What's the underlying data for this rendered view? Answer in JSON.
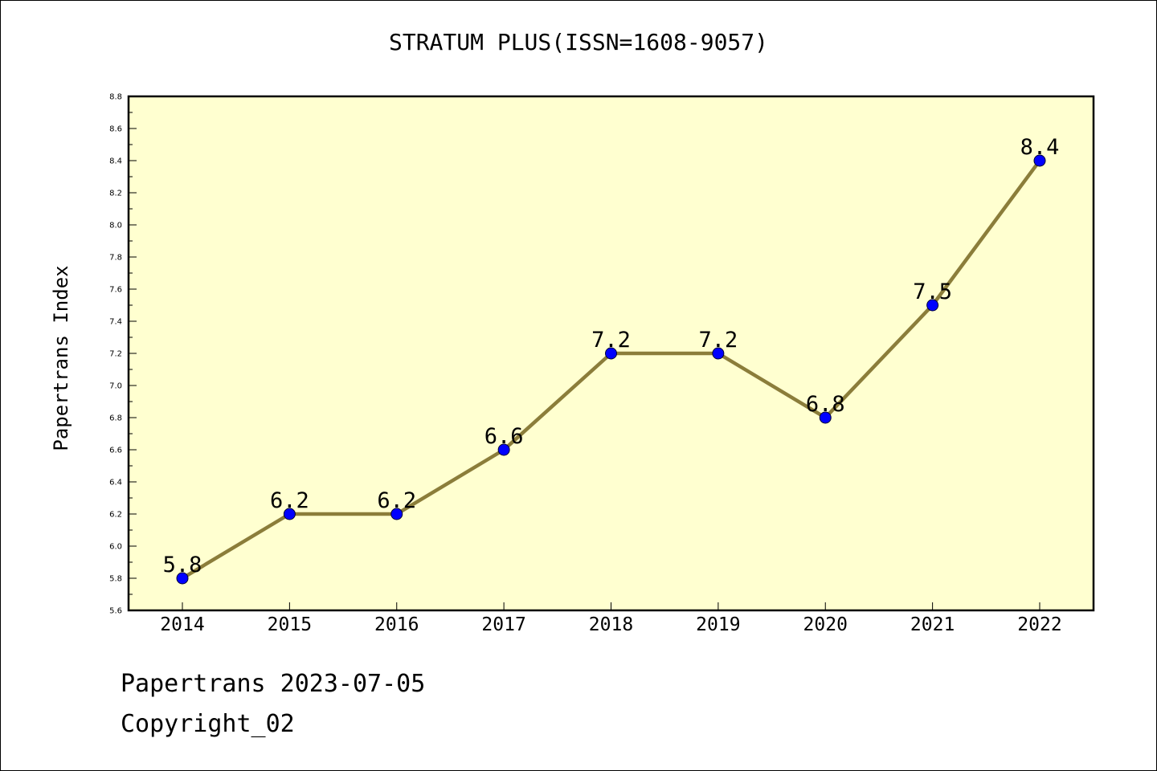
{
  "chart_data": {
    "type": "line",
    "title": "STRATUM PLUS(ISSN=1608-9057)",
    "xlabel": "",
    "ylabel": "Papertrans Index",
    "categories": [
      "2014",
      "2015",
      "2016",
      "2017",
      "2018",
      "2019",
      "2020",
      "2021",
      "2022"
    ],
    "series": [
      {
        "values": [
          5.8,
          6.2,
          6.2,
          6.6,
          7.2,
          7.2,
          6.8,
          7.5,
          8.4
        ]
      }
    ],
    "data_labels": [
      "5.8",
      "6.2",
      "6.2",
      "6.6",
      "7.2",
      "7.2",
      "6.8",
      "7.5",
      "8.4"
    ],
    "ylim": [
      5.6,
      8.8
    ],
    "yticks": [
      "5.6",
      "5.8",
      "6.0",
      "6.2",
      "6.4",
      "6.6",
      "6.8",
      "7.0",
      "7.2",
      "7.4",
      "7.6",
      "7.8",
      "8.0",
      "8.2",
      "8.4",
      "8.6",
      "8.8"
    ],
    "grid": false,
    "colors": {
      "plot_background": "#ffffd0",
      "line": "#8b7d3a",
      "marker": "#0000ff"
    }
  },
  "footer": {
    "line1": "Papertrans 2023-07-05",
    "line2": "Copyright_02"
  }
}
